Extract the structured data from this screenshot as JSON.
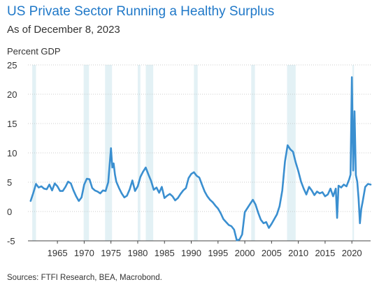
{
  "header": {
    "title": "US Private Sector Running a Healthy Surplus",
    "subtitle": "As of December 8, 2023"
  },
  "footer": {
    "source": "Sources: FTFI Research, BEA, Macrobond."
  },
  "colors": {
    "line": "#3a8fd0",
    "recession": "#e3f1f5",
    "grid": "#bfbfbf",
    "axis": "#444444",
    "title": "#1f78c8"
  },
  "chart_data": {
    "type": "line",
    "title": "US Private Sector Running a Healthy Surplus",
    "subtitle": "As of December 8, 2023",
    "ylabel": "Percent GDP",
    "xlabel": "",
    "xlim": [
      1959.5,
      2023.5
    ],
    "ylim": [
      -5,
      25
    ],
    "yticks": [
      -5,
      0,
      5,
      10,
      15,
      20,
      25
    ],
    "xticks": [
      1965,
      1970,
      1975,
      1980,
      1985,
      1990,
      1995,
      2000,
      2005,
      2010,
      2015,
      2020
    ],
    "grid": "horizontal",
    "recessions": [
      [
        1960.3,
        1961.0
      ],
      [
        1969.9,
        1970.9
      ],
      [
        1973.9,
        1975.2
      ],
      [
        1980.0,
        1980.5
      ],
      [
        1981.5,
        1982.9
      ],
      [
        1990.5,
        1991.2
      ],
      [
        2001.2,
        2001.9
      ],
      [
        2007.9,
        2009.5
      ],
      [
        2020.1,
        2020.4
      ]
    ],
    "series": [
      {
        "x": [
          1960.0,
          1960.5,
          1961.0,
          1961.5,
          1962.0,
          1962.5,
          1963.0,
          1963.5,
          1964.0,
          1964.5,
          1965.0,
          1965.5,
          1966.0,
          1966.5,
          1967.0,
          1967.5,
          1968.0,
          1968.5,
          1969.0,
          1969.5,
          1970.0,
          1970.5,
          1971.0,
          1971.5,
          1972.0,
          1972.5,
          1973.0,
          1973.5,
          1974.0,
          1974.5,
          1975.0,
          1975.25,
          1975.5,
          1975.75,
          1976.0,
          1976.5,
          1977.0,
          1977.5,
          1978.0,
          1978.5,
          1979.0,
          1979.5,
          1980.0,
          1980.5,
          1981.0,
          1981.5,
          1982.0,
          1982.5,
          1983.0,
          1983.5,
          1984.0,
          1984.5,
          1985.0,
          1985.5,
          1986.0,
          1986.5,
          1987.0,
          1987.5,
          1988.0,
          1988.5,
          1989.0,
          1989.5,
          1990.0,
          1990.5,
          1991.0,
          1991.5,
          1992.0,
          1992.5,
          1993.0,
          1993.5,
          1994.0,
          1994.5,
          1995.0,
          1995.5,
          1996.0,
          1996.5,
          1997.0,
          1997.5,
          1998.0,
          1998.5,
          1999.0,
          1999.5,
          2000.0,
          2000.5,
          2001.0,
          2001.5,
          2002.0,
          2002.5,
          2003.0,
          2003.5,
          2004.0,
          2004.5,
          2005.0,
          2005.5,
          2006.0,
          2006.5,
          2007.0,
          2007.5,
          2008.0,
          2008.5,
          2009.0,
          2009.5,
          2010.0,
          2010.5,
          2011.0,
          2011.5,
          2012.0,
          2012.5,
          2013.0,
          2013.5,
          2014.0,
          2014.5,
          2015.0,
          2015.5,
          2016.0,
          2016.5,
          2017.0,
          2017.25,
          2017.5,
          2018.0,
          2018.5,
          2019.0,
          2019.5,
          2019.75,
          2020.0,
          2020.25,
          2020.5,
          2020.75,
          2021.0,
          2021.25,
          2021.5,
          2021.75,
          2022.0,
          2022.5,
          2023.0,
          2023.5
        ],
        "values": [
          1.8,
          3.2,
          4.7,
          4.1,
          4.3,
          3.9,
          3.8,
          4.6,
          3.6,
          4.8,
          4.3,
          3.5,
          3.5,
          4.2,
          5.1,
          4.8,
          3.6,
          2.6,
          1.8,
          2.4,
          4.6,
          5.6,
          5.5,
          4.0,
          3.6,
          3.4,
          3.1,
          3.6,
          3.5,
          5.0,
          10.8,
          7.5,
          8.2,
          6.3,
          5.1,
          4.0,
          3.1,
          2.4,
          2.7,
          3.8,
          5.3,
          3.5,
          4.3,
          5.9,
          6.8,
          7.5,
          6.3,
          5.2,
          3.7,
          4.1,
          3.2,
          4.2,
          2.3,
          2.7,
          3.0,
          2.6,
          1.9,
          2.3,
          3.0,
          3.6,
          4.0,
          5.7,
          6.4,
          6.7,
          6.1,
          5.8,
          4.6,
          3.4,
          2.6,
          2.0,
          1.6,
          1.0,
          0.5,
          -0.3,
          -1.3,
          -1.8,
          -2.3,
          -2.5,
          -3.1,
          -4.9,
          -4.8,
          -3.9,
          -0.1,
          0.6,
          1.3,
          2.0,
          1.2,
          -0.2,
          -1.4,
          -2.0,
          -1.8,
          -2.8,
          -2.1,
          -1.3,
          -0.5,
          0.9,
          3.6,
          8.5,
          11.3,
          10.6,
          10.2,
          8.4,
          6.9,
          5.1,
          3.9,
          2.9,
          4.2,
          3.6,
          2.8,
          3.4,
          3.1,
          3.3,
          2.6,
          2.9,
          3.9,
          2.6,
          3.9,
          -1.1,
          4.4,
          4.1,
          4.6,
          4.3,
          5.5,
          6.3,
          22.9,
          7.0,
          17.1,
          6.2,
          5.1,
          2.2,
          -2.0,
          0.4,
          1.6,
          4.2,
          4.7,
          4.6
        ]
      }
    ]
  }
}
